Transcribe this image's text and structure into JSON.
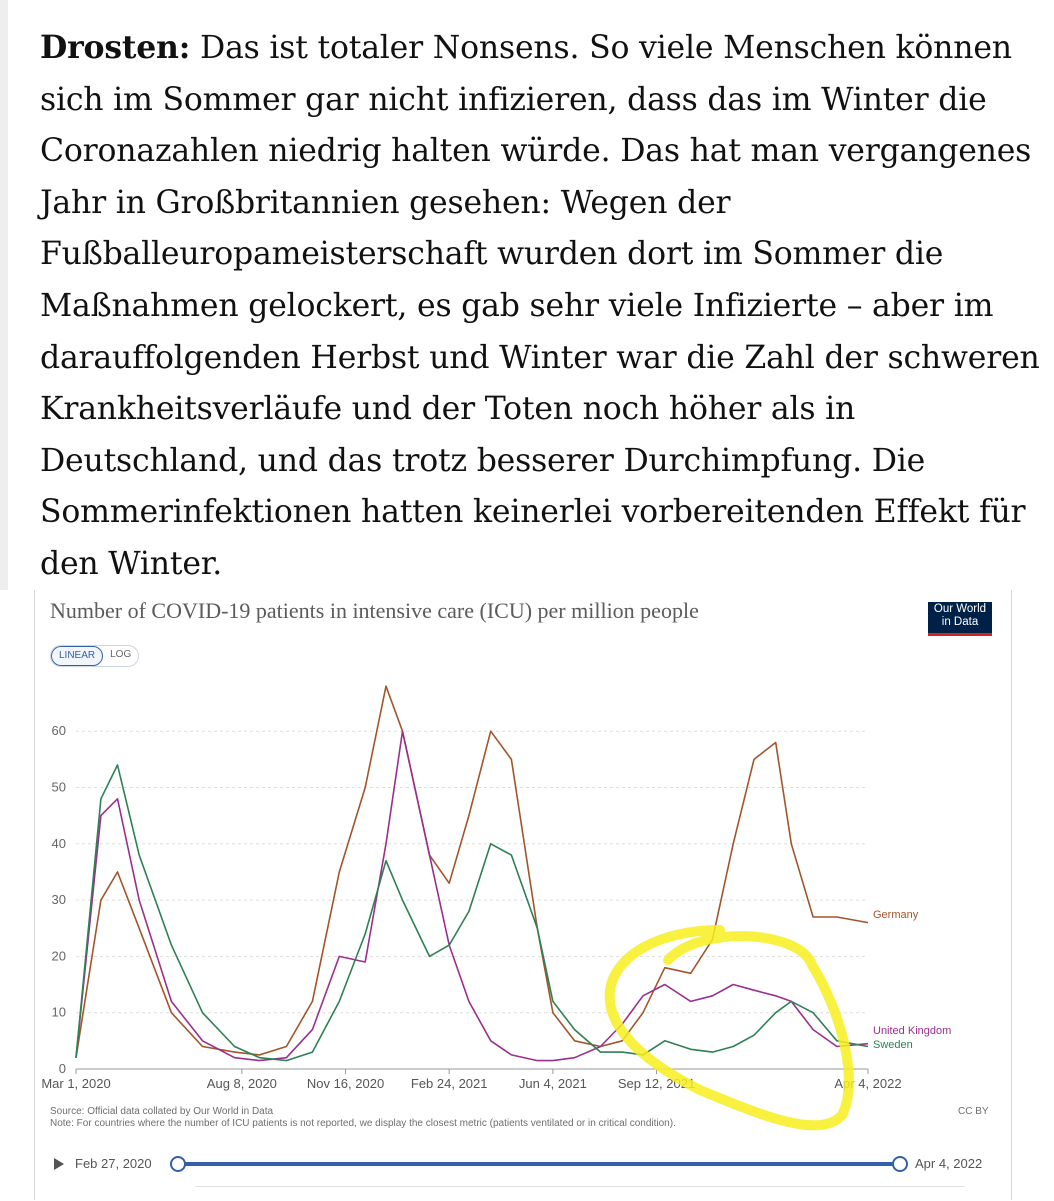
{
  "article": {
    "speaker": "Drosten:",
    "lines": [
      "Das ist totaler Nonsens. So viele Menschen können",
      "sich im Sommer gar nicht infizieren, dass das im Winter die",
      "Coronazahlen niedrig halten würde. Das hat man vergangenes",
      "Jahr in Großbritannien gesehen: Wegen der",
      "Fußballeuropameisterschaft wurden dort im Sommer die",
      "Maßnahmen gelockert, es gab sehr viele Infizierte – aber im",
      "darauffolgenden Herbst und Winter war die Zahl der schweren",
      "Krankheitsverläufe und der Toten noch höher als in",
      "Deutschland, und das trotz besserer Durchimpfung. Die",
      "Sommerinfektionen hatten keinerlei vorbereitenden Effekt für",
      "den Winter."
    ]
  },
  "logo": {
    "line1": "Our World",
    "line2": "in Data"
  },
  "scale_toggle": {
    "linear": "LINEAR",
    "log": "LOG",
    "selected": "LINEAR"
  },
  "source": {
    "line1": "Source: Official data collated by Our World in Data",
    "line2": "Note: For countries where the number of ICU patients is not reported, we display the closest metric (patients ventilated or in critical condition).",
    "license": "CC BY"
  },
  "timeline": {
    "start": "Feb 27, 2020",
    "end": "Apr 4, 2022"
  },
  "colors": {
    "germany": "#a2552c",
    "uk": "#9a2f8e",
    "sweden": "#2e8055",
    "highlight": "#f7ee1e",
    "accent": "#3360a9"
  },
  "chart_data": {
    "type": "line",
    "title": "Number of COVID-19 patients in intensive care (ICU) per million people",
    "ylim": [
      0,
      70
    ],
    "yticks": [
      "0",
      "10",
      "20",
      "30",
      "40",
      "50",
      "60"
    ],
    "xticks": [
      "Mar 1, 2020",
      "Aug 8, 2020",
      "Nov 16, 2020",
      "Feb 24, 2021",
      "Jun 4, 2021",
      "Sep 12, 2021",
      "Apr 4, 2022"
    ],
    "grid": true,
    "legend": "line-end labels",
    "x": [
      "2020-03-01",
      "2020-03-25",
      "2020-04-10",
      "2020-05-01",
      "2020-06-01",
      "2020-07-01",
      "2020-08-01",
      "2020-08-25",
      "2020-09-20",
      "2020-10-15",
      "2020-11-10",
      "2020-12-05",
      "2020-12-25",
      "2021-01-10",
      "2021-02-05",
      "2021-02-24",
      "2021-03-15",
      "2021-04-05",
      "2021-04-25",
      "2021-05-20",
      "2021-06-04",
      "2021-06-25",
      "2021-07-20",
      "2021-08-10",
      "2021-08-30",
      "2021-09-20",
      "2021-10-15",
      "2021-11-05",
      "2021-11-25",
      "2021-12-15",
      "2022-01-05",
      "2022-01-20",
      "2022-02-10",
      "2022-03-05",
      "2022-04-04"
    ],
    "series": [
      {
        "name": "Germany",
        "values": [
          2,
          30,
          35,
          25,
          10,
          4,
          3,
          2.5,
          4,
          12,
          35,
          50,
          68,
          60,
          38,
          33,
          45,
          60,
          55,
          25,
          10,
          5,
          4,
          5,
          10,
          18,
          17,
          23,
          40,
          55,
          58,
          40,
          27,
          27,
          26
        ]
      },
      {
        "name": "United Kingdom",
        "values": [
          2,
          45,
          48,
          30,
          12,
          5,
          2,
          1.5,
          2,
          7,
          20,
          19,
          40,
          60,
          38,
          22,
          12,
          5,
          2.5,
          1.5,
          1.5,
          2,
          4,
          8,
          13,
          15,
          12,
          13,
          15,
          14,
          13,
          12,
          7,
          4,
          4.5
        ]
      },
      {
        "name": "Sweden",
        "values": [
          2,
          48,
          54,
          38,
          22,
          10,
          4,
          2,
          1.5,
          3,
          12,
          24,
          37,
          30,
          20,
          22,
          28,
          40,
          38,
          25,
          12,
          7,
          3,
          3,
          2.5,
          5,
          3.5,
          3,
          4,
          6,
          10,
          12,
          10,
          5,
          4
        ]
      }
    ],
    "series_labels": [
      "Germany",
      "United Kingdom",
      "Sweden"
    ]
  }
}
